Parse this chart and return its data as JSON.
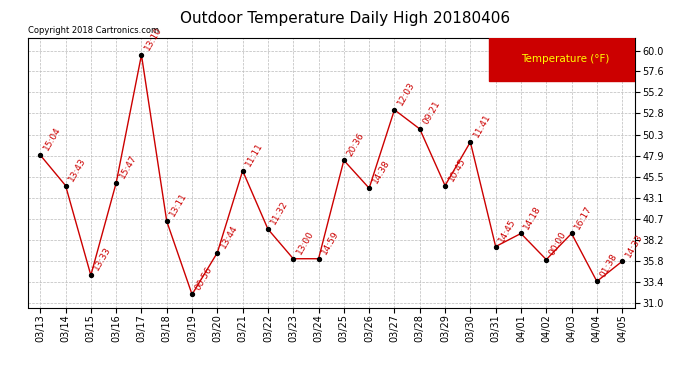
{
  "title": "Outdoor Temperature Daily High 20180406",
  "copyright": "Copyright 2018 Cartronics.com",
  "legend_label": "Temperature (°F)",
  "dates": [
    "03/13",
    "03/14",
    "03/15",
    "03/16",
    "03/17",
    "03/18",
    "03/19",
    "03/20",
    "03/21",
    "03/22",
    "03/23",
    "03/24",
    "03/25",
    "03/26",
    "03/27",
    "03/28",
    "03/29",
    "03/30",
    "03/31",
    "04/01",
    "04/02",
    "04/03",
    "04/04",
    "04/05"
  ],
  "values": [
    48.0,
    44.5,
    34.2,
    44.8,
    59.5,
    40.4,
    32.0,
    36.8,
    46.2,
    39.5,
    36.1,
    36.1,
    47.4,
    44.2,
    53.2,
    51.0,
    44.5,
    49.5,
    37.5,
    39.0,
    36.0,
    39.0,
    33.5,
    35.8
  ],
  "time_labels": [
    "15:04",
    "13:43",
    "13:33",
    "15:47",
    "13:10",
    "13:11",
    "00:56",
    "13:44",
    "11:11",
    "11:32",
    "13:00",
    "14:59",
    "20:36",
    "14:38",
    "12:03",
    "09:21",
    "10:45",
    "11:41",
    "14:45",
    "14:18",
    "00:00",
    "16:17",
    "01:38",
    "14:33"
  ],
  "line_color": "#cc0000",
  "marker_color": "#000000",
  "bg_color": "#ffffff",
  "legend_bg": "#cc0000",
  "legend_text_color": "#ffff00",
  "grid_color": "#bbbbbb",
  "title_color": "#000000",
  "copyright_color": "#000000",
  "ylabel_ticks": [
    31.0,
    33.4,
    35.8,
    38.2,
    40.7,
    43.1,
    45.5,
    47.9,
    50.3,
    52.8,
    55.2,
    57.6,
    60.0
  ],
  "ylim": [
    30.5,
    61.5
  ],
  "label_fontsize": 6.5,
  "title_fontsize": 11,
  "tick_fontsize": 7,
  "copyright_fontsize": 6
}
